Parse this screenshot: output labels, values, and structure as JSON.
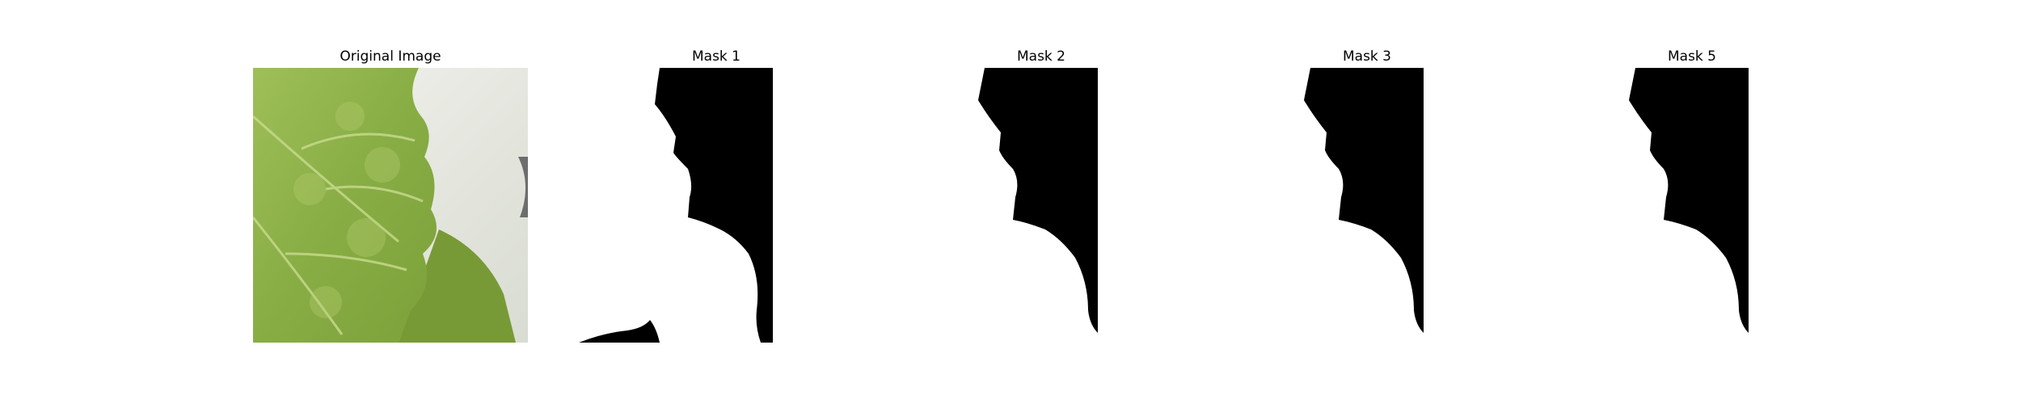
{
  "figure": {
    "panels": [
      {
        "title": "Original Image"
      },
      {
        "title": "Mask 1"
      },
      {
        "title": "Mask 2"
      },
      {
        "title": "Mask 3"
      },
      {
        "title": "Mask 5"
      }
    ]
  },
  "colors": {
    "background": "#ffffff",
    "leaf_green": "#8fb14a",
    "leaf_dark": "#6a8f2c",
    "paper": "#e6e8e1",
    "mask_foreground": "#000000",
    "mask_background": "#ffffff"
  }
}
